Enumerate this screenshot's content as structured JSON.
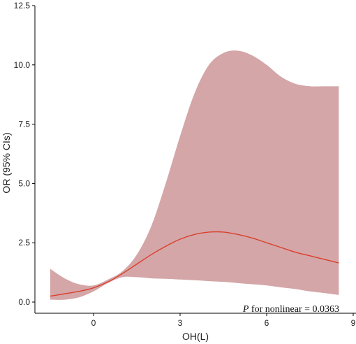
{
  "chart_data": {
    "type": "area",
    "xlabel": "OH(L)",
    "ylabel": "OR (95% CIs)",
    "xlim": [
      -1.6,
      8.8
    ],
    "ylim": [
      -0.3,
      12.5
    ],
    "xticks": [
      0,
      3,
      6,
      9
    ],
    "xtick_labels": [
      "0",
      "3",
      "6",
      "9"
    ],
    "yticks": [
      0.0,
      2.5,
      5.0,
      7.5,
      10.0,
      12.5
    ],
    "ytick_labels": [
      "0.0",
      "2.5",
      "5.0",
      "7.5",
      "10.0",
      "12.5"
    ],
    "grid": false,
    "legend": "none",
    "annotation": {
      "italic_part": "P",
      "rest": " for nonlinear = 0.0363"
    },
    "colors": {
      "band": "#d4a6a8",
      "line": "#d9402b",
      "axis": "#000000"
    },
    "series": [
      {
        "role": "estimate",
        "x": [
          -1.5,
          -1.0,
          -0.5,
          0.0,
          0.5,
          1.0,
          1.5,
          2.0,
          2.5,
          3.0,
          3.5,
          4.0,
          4.5,
          5.0,
          5.5,
          6.0,
          6.5,
          7.0,
          7.5,
          8.0,
          8.5
        ],
        "y": [
          0.25,
          0.35,
          0.45,
          0.6,
          0.85,
          1.2,
          1.6,
          2.0,
          2.35,
          2.65,
          2.85,
          2.95,
          2.95,
          2.85,
          2.7,
          2.5,
          2.3,
          2.1,
          1.95,
          1.8,
          1.65
        ]
      },
      {
        "role": "upper_ci",
        "x": [
          -1.5,
          -1.0,
          -0.5,
          0.0,
          0.5,
          1.0,
          1.5,
          2.0,
          2.5,
          3.0,
          3.5,
          4.0,
          4.5,
          5.0,
          5.5,
          6.0,
          6.5,
          7.0,
          7.5,
          8.0,
          8.5
        ],
        "y": [
          1.4,
          1.0,
          0.75,
          0.7,
          0.95,
          1.3,
          2.0,
          3.2,
          5.0,
          7.0,
          8.8,
          10.0,
          10.5,
          10.6,
          10.4,
          10.0,
          9.5,
          9.2,
          9.1,
          9.1,
          9.1
        ]
      },
      {
        "role": "lower_ci",
        "x": [
          -1.5,
          -1.0,
          -0.5,
          0.0,
          0.5,
          1.0,
          1.5,
          2.0,
          2.5,
          3.0,
          3.5,
          4.0,
          4.5,
          5.0,
          5.5,
          6.0,
          6.5,
          7.0,
          7.5,
          8.0,
          8.5
        ],
        "y": [
          0.1,
          0.1,
          0.2,
          0.45,
          0.8,
          1.05,
          1.05,
          1.0,
          0.98,
          0.95,
          0.92,
          0.88,
          0.85,
          0.8,
          0.75,
          0.7,
          0.62,
          0.55,
          0.45,
          0.38,
          0.3
        ]
      }
    ]
  }
}
